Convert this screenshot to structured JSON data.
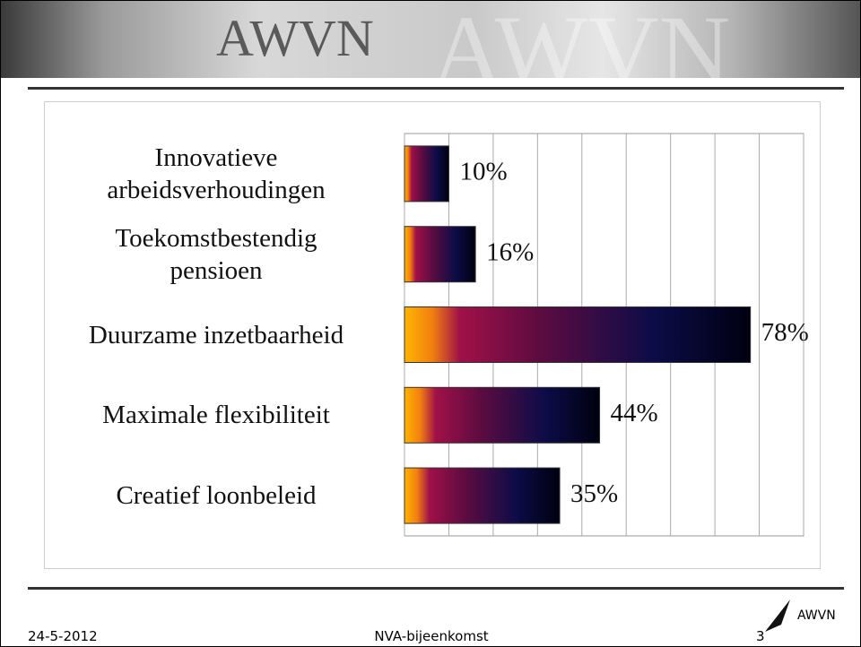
{
  "header": {
    "logo": "AWVN",
    "watermark": "AWVN"
  },
  "chart_data": {
    "type": "barh",
    "categories": [
      "Innovatieve\narbeidsverhoudingen",
      "Toekomstbestendig\npensioen",
      "Duurzame inzetbaarheid",
      "Maximale flexibiliteit",
      "Creatief loonbeleid"
    ],
    "values": [
      10,
      16,
      78,
      44,
      35
    ],
    "value_labels": [
      "10%",
      "16%",
      "78%",
      "44%",
      "35%"
    ],
    "xlim": [
      0,
      90
    ],
    "xticks": [
      0,
      10,
      20,
      30,
      40,
      50,
      60,
      70,
      80,
      90
    ],
    "grid": true
  },
  "footer": {
    "date": "24-5-2012",
    "title": "NVA-bijeenkomst",
    "page": "3",
    "logo": "AWVN"
  }
}
